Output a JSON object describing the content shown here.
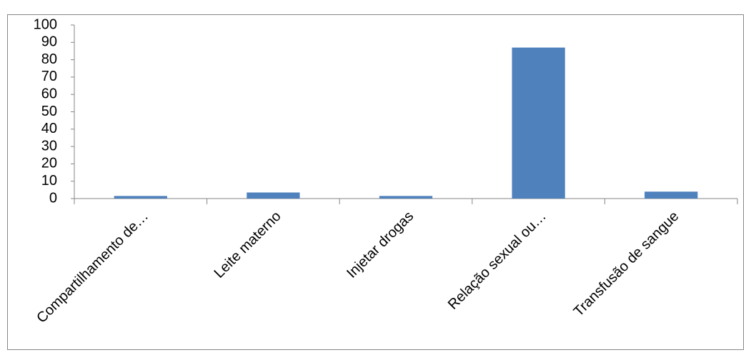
{
  "chart_data": {
    "type": "bar",
    "categories": [
      "Compartilhamento de…",
      "Leite materno",
      "Injetar drogas",
      "Relação sexual ou…",
      "Transfusão de sangue"
    ],
    "values": [
      1.5,
      3.5,
      1.5,
      87,
      4
    ],
    "color": "#4f81bd",
    "ylim": [
      0,
      100
    ],
    "yticks": [
      0,
      10,
      20,
      30,
      40,
      50,
      60,
      70,
      80,
      90,
      100
    ],
    "grid": false
  }
}
